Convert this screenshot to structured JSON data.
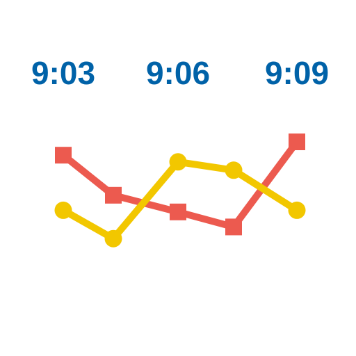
{
  "chart_data": {
    "type": "line",
    "title": "",
    "xlabel": "",
    "ylabel": "",
    "categories": [
      "",
      "",
      "",
      "",
      ""
    ],
    "tick_labels": [
      "9:03",
      "9:06",
      "9:09"
    ],
    "ylim": [
      0,
      10
    ],
    "grid": false,
    "legend": "none",
    "series": [
      {
        "marker": "square",
        "color": "#ec5a4f",
        "values": [
          8.2,
          5.8,
          4.8,
          3.9,
          9.0
        ]
      },
      {
        "marker": "circle",
        "color": "#f2c700",
        "values": [
          4.9,
          3.2,
          7.8,
          7.3,
          4.9
        ]
      }
    ]
  },
  "colors": {
    "label": "#0062a8",
    "background": "#ffffff"
  }
}
